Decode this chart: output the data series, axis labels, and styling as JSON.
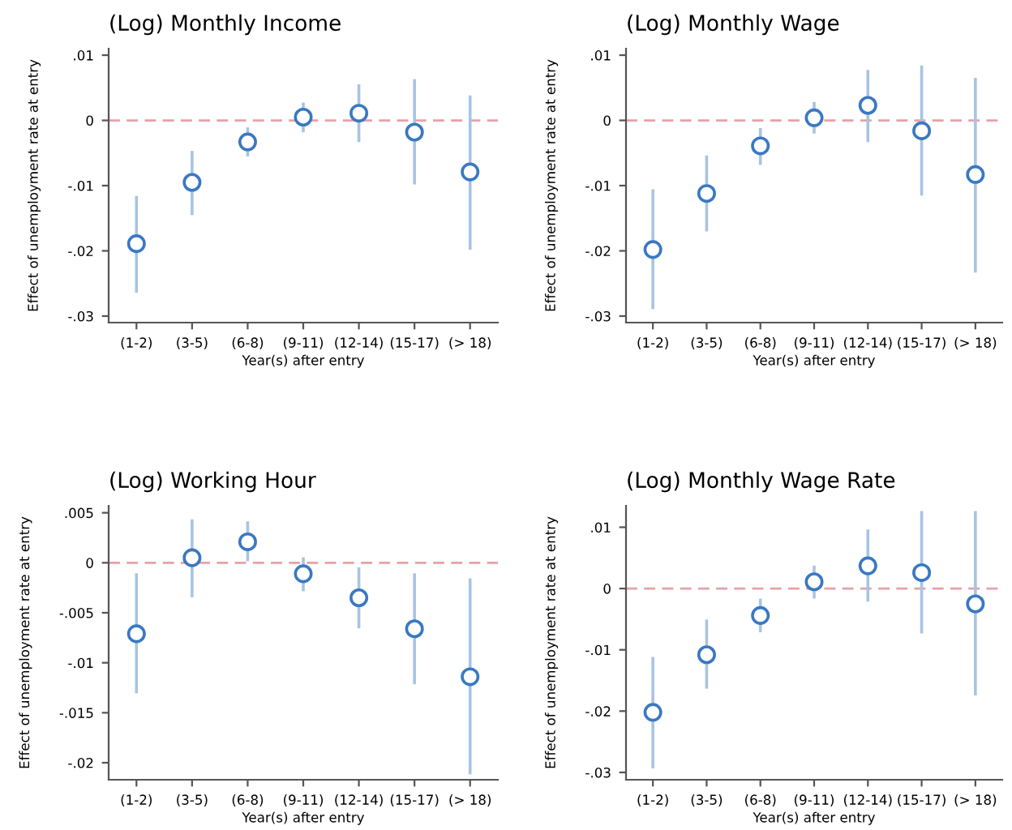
{
  "chart_data": [
    {
      "type": "scatter",
      "title": "(Log) Monthly Income",
      "xlabel": "Year(s) after entry",
      "ylabel": "Effect of unemployment rate at entry",
      "categories": [
        "(1-2)",
        "(3-5)",
        "(6-8)",
        "(9-11)",
        "(12-14)",
        "(15-17)",
        "(> 18)"
      ],
      "series": [
        {
          "color": "#3a78c2",
          "values": [
            -0.0189,
            -0.0095,
            -0.0033,
            0.0005,
            0.0011,
            -0.0018,
            -0.0079
          ],
          "errors": [
            [
              -0.0262,
              -0.0118
            ],
            [
              -0.0143,
              -0.0049
            ],
            [
              -0.0053,
              -0.0013
            ],
            [
              -0.0016,
              0.0025
            ],
            [
              -0.0031,
              0.0053
            ],
            [
              -0.0096,
              0.0061
            ],
            [
              -0.0196,
              0.0036
            ]
          ]
        }
      ],
      "marker": "circle",
      "grid": false,
      "ylim": [
        -0.031,
        0.011
      ],
      "yticks": [
        {
          "value": -0.03,
          "label": "-.03"
        },
        {
          "value": -0.02,
          "label": "-.02"
        },
        {
          "value": -0.01,
          "label": "-.01"
        },
        0,
        {
          "value": 0.01,
          "label": ".01"
        }
      ],
      "ref_lines": [
        {
          "axis": "y",
          "value": 0,
          "color": "#e8a0a8",
          "line_style": "dashed"
        }
      ]
    },
    {
      "type": "scatter",
      "title": "(Log) Monthly Wage",
      "xlabel": "Year(s) after entry",
      "ylabel": "Effect of unemployment rate at entry",
      "categories": [
        "(1-2)",
        "(3-5)",
        "(6-8)",
        "(9-11)",
        "(12-14)",
        "(15-17)",
        "(> 18)"
      ],
      "series": [
        {
          "color": "#3a78c2",
          "values": [
            -0.0198,
            -0.0112,
            -0.0039,
            0.0004,
            0.0023,
            -0.0016,
            -0.0083
          ],
          "errors": [
            [
              -0.0287,
              -0.0108
            ],
            [
              -0.0168,
              -0.0056
            ],
            [
              -0.0066,
              -0.0014
            ],
            [
              -0.0018,
              0.0026
            ],
            [
              -0.0031,
              0.0075
            ],
            [
              -0.0113,
              0.0082
            ],
            [
              -0.0231,
              0.0063
            ]
          ]
        }
      ],
      "marker": "circle",
      "grid": false,
      "ylim": [
        -0.031,
        0.011
      ],
      "yticks": [
        {
          "value": -0.03,
          "label": "-.03"
        },
        {
          "value": -0.02,
          "label": "-.02"
        },
        {
          "value": -0.01,
          "label": "-.01"
        },
        0,
        {
          "value": 0.01,
          "label": ".01"
        }
      ],
      "ref_lines": [
        {
          "axis": "y",
          "value": 0,
          "color": "#e8a0a8",
          "line_style": "dashed"
        }
      ]
    },
    {
      "type": "scatter",
      "title": "(Log) Working Hour",
      "xlabel": "Year(s) after entry",
      "ylabel": "Effect of unemployment rate at entry",
      "categories": [
        "(1-2)",
        "(3-5)",
        "(6-8)",
        "(9-11)",
        "(12-14)",
        "(15-17)",
        "(> 18)"
      ],
      "series": [
        {
          "color": "#3a78c2",
          "values": [
            -0.0071,
            0.0005,
            0.0021,
            -0.0011,
            -0.0035,
            -0.0066,
            -0.0114
          ],
          "errors": [
            [
              -0.0129,
              -0.0012
            ],
            [
              -0.0033,
              0.0042
            ],
            [
              0.0003,
              0.004
            ],
            [
              -0.0027,
              0.0004
            ],
            [
              -0.0064,
              -0.0006
            ],
            [
              -0.012,
              -0.0012
            ],
            [
              -0.021,
              -0.0017
            ]
          ]
        }
      ],
      "marker": "circle",
      "grid": false,
      "ylim": [
        -0.0217,
        0.0057
      ],
      "yticks": [
        {
          "value": -0.02,
          "label": "-.02"
        },
        {
          "value": -0.015,
          "label": "-.015"
        },
        {
          "value": -0.01,
          "label": "-.01"
        },
        {
          "value": -0.005,
          "label": "-.005"
        },
        0,
        {
          "value": 0.005,
          "label": ".005"
        }
      ],
      "ref_lines": [
        {
          "axis": "y",
          "value": 0,
          "color": "#e8a0a8",
          "line_style": "dashed"
        }
      ]
    },
    {
      "type": "scatter",
      "title": "(Log) Monthly Wage Rate",
      "xlabel": "Year(s) after entry",
      "ylabel": "Effect of unemployment rate at entry",
      "categories": [
        "(1-2)",
        "(3-5)",
        "(6-8)",
        "(9-11)",
        "(12-14)",
        "(15-17)",
        "(> 18)"
      ],
      "series": [
        {
          "color": "#3a78c2",
          "values": [
            -0.0202,
            -0.0108,
            -0.0044,
            0.0011,
            0.0037,
            0.0026,
            -0.0025
          ],
          "errors": [
            [
              -0.0291,
              -0.0114
            ],
            [
              -0.0161,
              -0.0053
            ],
            [
              -0.0069,
              -0.0019
            ],
            [
              -0.0014,
              0.0035
            ],
            [
              -0.0019,
              0.0094
            ],
            [
              -0.0071,
              0.0124
            ],
            [
              -0.0172,
              0.0124
            ]
          ]
        }
      ],
      "marker": "circle",
      "grid": false,
      "ylim": [
        -0.0312,
        0.0135
      ],
      "yticks": [
        {
          "value": -0.03,
          "label": "-.03"
        },
        {
          "value": -0.02,
          "label": "-.02"
        },
        {
          "value": -0.01,
          "label": "-.01"
        },
        0,
        {
          "value": 0.01,
          "label": ".01"
        }
      ],
      "ref_lines": [
        {
          "axis": "y",
          "value": 0,
          "color": "#e8a0a8",
          "line_style": "dashed"
        }
      ]
    }
  ]
}
